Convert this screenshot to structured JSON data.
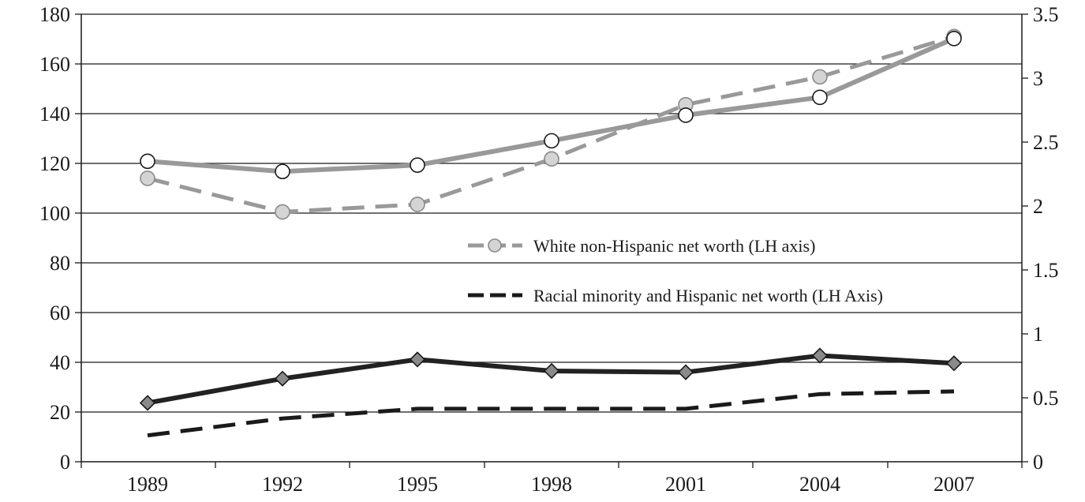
{
  "chart_data": {
    "type": "line",
    "x": [
      "1989",
      "1992",
      "1995",
      "1998",
      "2001",
      "2004",
      "2007"
    ],
    "y_left": {
      "ticks": [
        "0",
        "20",
        "40",
        "60",
        "80",
        "100",
        "120",
        "140",
        "160",
        "180"
      ],
      "ylim": [
        0,
        180
      ]
    },
    "y_right": {
      "ticks": [
        "0",
        "0.5",
        "1",
        "1.5",
        "2",
        "2.5",
        "3",
        "3.5"
      ],
      "ylim": [
        0,
        3.5
      ]
    },
    "grid": true,
    "series": [
      {
        "name": "White non-Hispanic net worth (LH axis)",
        "axis": "left",
        "style": "dashed",
        "marker": "circle",
        "color": "#999999",
        "marker_fill": "#d4d4d4",
        "values": [
          114,
          100.5,
          103.5,
          121.8,
          143.6,
          154.8,
          171
        ]
      },
      {
        "name": "Racial minority and Hispanic net worth (LH Axis)",
        "axis": "left",
        "style": "dashed",
        "marker": "none",
        "color": "#1a1a1a",
        "values": [
          10.6,
          17.4,
          21.3,
          21.3,
          21.3,
          27.2,
          28.3
        ]
      },
      {
        "name": "",
        "axis": "right",
        "style": "solid",
        "marker": "circle",
        "color": "#999999",
        "marker_fill": "#ffffff",
        "values": [
          2.35,
          2.27,
          2.32,
          2.51,
          2.71,
          2.85,
          3.31
        ]
      },
      {
        "name": "",
        "axis": "right",
        "style": "solid",
        "marker": "diamond",
        "color": "#222222",
        "marker_fill": "#8a8a8a",
        "values": [
          0.46,
          0.65,
          0.8,
          0.71,
          0.7,
          0.83,
          0.77
        ]
      }
    ],
    "legend": {
      "placement": "center-right",
      "entries": [
        0,
        1
      ]
    }
  }
}
